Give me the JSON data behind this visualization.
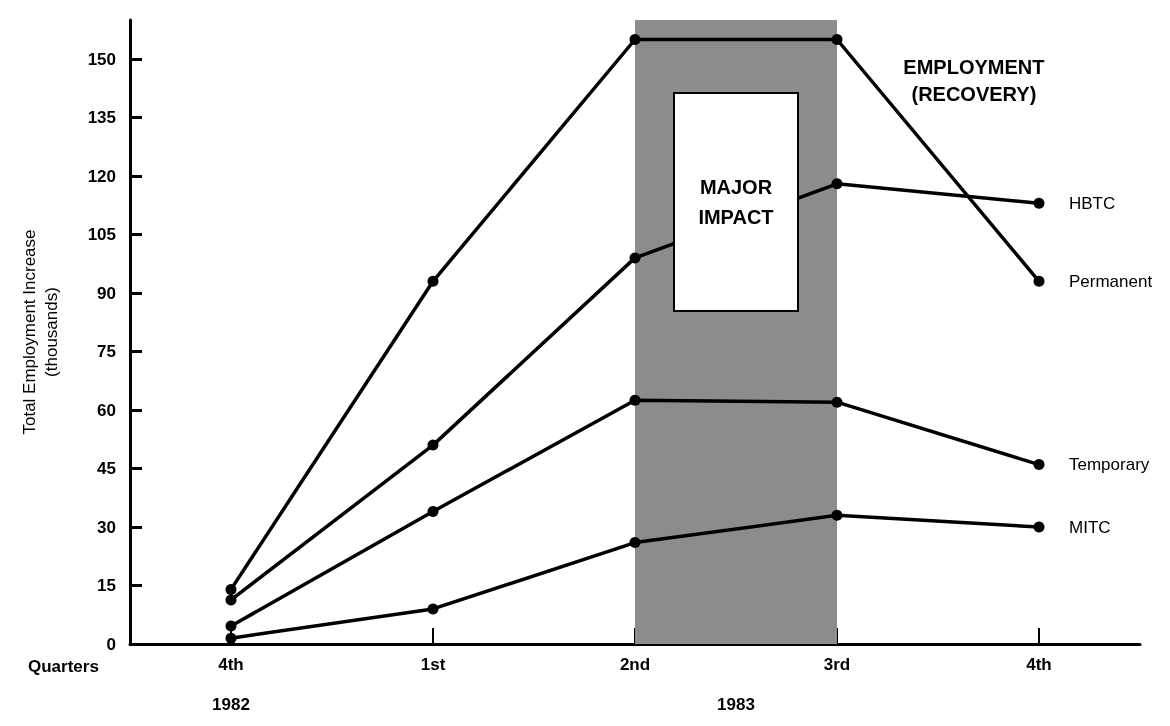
{
  "chart_data": {
    "type": "line",
    "title": "EMPLOYMENT\n(RECOVERY)",
    "ylabel": "Total Employment Increase\n(thousands)",
    "xlabel": "Quarters",
    "categories": [
      "4th",
      "1st",
      "2nd",
      "3rd",
      "4th"
    ],
    "series": [
      {
        "name": "HBTC",
        "color": "#000000",
        "values": [
          11.3,
          51,
          99,
          118,
          113
        ]
      },
      {
        "name": "Permanent",
        "color": "#000000",
        "values": [
          14,
          93,
          155,
          155,
          93
        ]
      },
      {
        "name": "Temporary",
        "color": "#000000",
        "values": [
          4.6,
          34,
          62.5,
          62,
          46
        ]
      },
      {
        "name": "MITC",
        "color": "#000000",
        "values": [
          1.5,
          9,
          26,
          33,
          30
        ]
      }
    ],
    "ylim": [
      0,
      160
    ],
    "yticks": [
      0,
      15,
      30,
      45,
      60,
      75,
      90,
      105,
      120,
      135,
      150
    ],
    "bands": [
      {
        "axis": "x",
        "from": "2nd",
        "to": "3rd",
        "label": "MAJOR IMPACT",
        "color": "#8c8c8c"
      }
    ],
    "annotations": [
      "1982",
      "1983"
    ],
    "marker": "circle",
    "line_style": "solid",
    "grid": false,
    "legend": false
  }
}
